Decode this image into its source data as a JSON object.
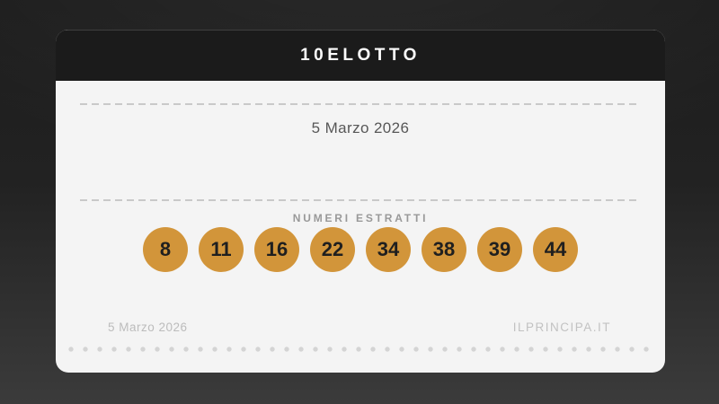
{
  "card": {
    "title": "10ELOTTO",
    "draw_date": "5 Marzo 2026",
    "numbers_label": "NUMERI ESTRATTI",
    "numbers": [
      "8",
      "11",
      "16",
      "22",
      "34",
      "38",
      "39",
      "44"
    ],
    "footer": {
      "date": "5 Marzo 2026",
      "site": "ILPRINCIPA.IT"
    }
  },
  "colors": {
    "header_bg": "#1b1b1b",
    "card_bg": "#f4f4f4",
    "title_text": "#ffffff",
    "ball": "#d2953a",
    "ball_text": "#1f1f1f",
    "accent_dash": "#c9c9c9"
  }
}
